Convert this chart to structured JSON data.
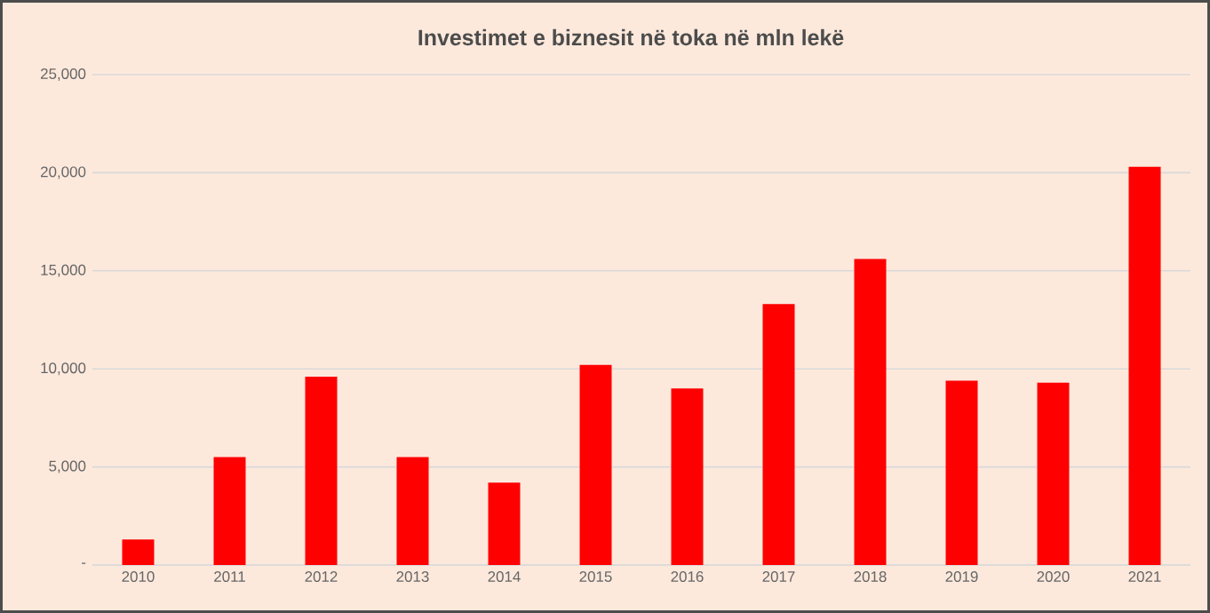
{
  "chart_data": {
    "type": "bar",
    "title": "Investimet e biznesit në toka në mln lekë",
    "categories": [
      "2010",
      "2011",
      "2012",
      "2013",
      "2014",
      "2015",
      "2016",
      "2017",
      "2018",
      "2019",
      "2020",
      "2021"
    ],
    "values": [
      1300,
      5500,
      9600,
      5500,
      4200,
      10200,
      9000,
      13300,
      15600,
      9400,
      9300,
      20300
    ],
    "color": "#ff0000",
    "ylim": [
      0,
      25000
    ],
    "yticks": [
      {
        "value": 0,
        "label": "-"
      },
      {
        "value": 5000,
        "label": "5,000"
      },
      {
        "value": 10000,
        "label": "10,000"
      },
      {
        "value": 15000,
        "label": "15,000"
      },
      {
        "value": 20000,
        "label": "20,000"
      },
      {
        "value": 25000,
        "label": "25,000"
      }
    ],
    "grid": "y"
  }
}
